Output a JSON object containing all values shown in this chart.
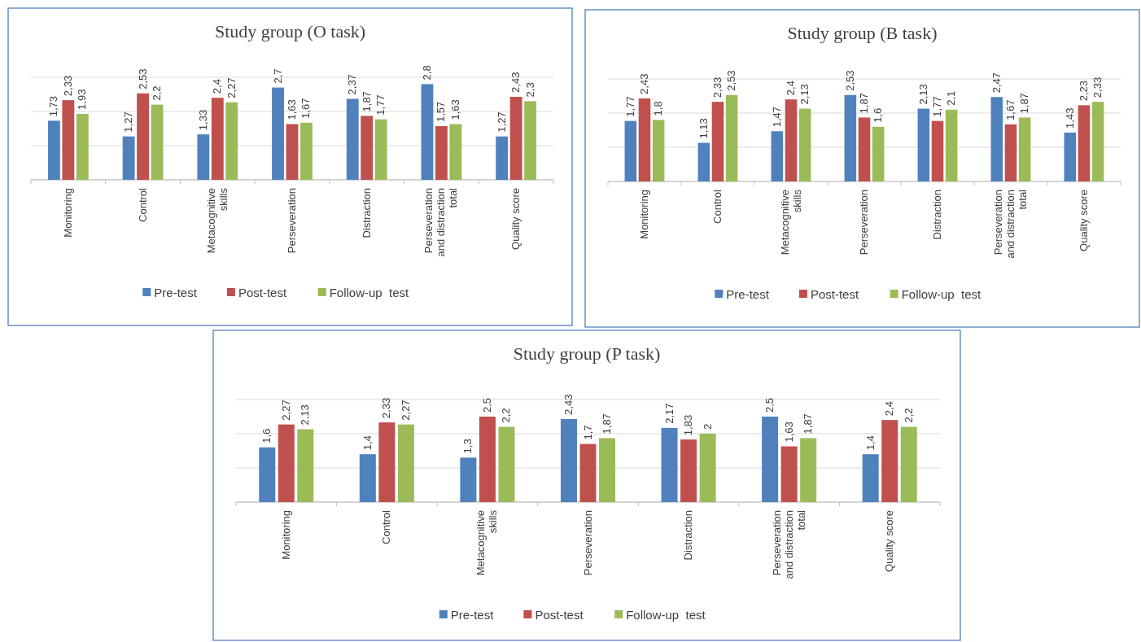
{
  "chart_data": [
    {
      "type": "bar",
      "title": "Study group (O task)",
      "categories": [
        "Monitoring",
        "Control",
        "Metacognitive skills",
        "Perseveration",
        "Distraction",
        "Perseveration and distraction total",
        "Quality score"
      ],
      "ylim": [
        0,
        3
      ],
      "yticks": [
        {
          "value": 0,
          "label": null
        },
        {
          "value": 1,
          "label": null
        },
        {
          "value": 2,
          "label": null
        },
        {
          "value": 3,
          "label": null
        }
      ],
      "tick_labels": "x",
      "grid": "y",
      "legend": "bottom",
      "series": [
        {
          "name": "Pre-test",
          "color": "#4f81bd",
          "values": [
            1.73,
            1.27,
            1.33,
            2.7,
            2.37,
            2.8,
            1.27
          ],
          "value_labels": [
            "1,73",
            "1,27",
            "1,33",
            "2,7",
            "2,37",
            "2,8",
            "1,27"
          ]
        },
        {
          "name": "Post-test",
          "color": "#c0504d",
          "values": [
            2.33,
            2.53,
            2.4,
            1.63,
            1.87,
            1.57,
            2.43
          ],
          "value_labels": [
            "2,33",
            "2,53",
            "2,4",
            "1,63",
            "1,87",
            "1,57",
            "2,43"
          ]
        },
        {
          "name": "Follow-up  test",
          "color": "#9bbb59",
          "values": [
            1.93,
            2.2,
            2.27,
            1.67,
            1.77,
            1.63,
            2.3
          ],
          "value_labels": [
            "1,93",
            "2,2",
            "2,27",
            "1,67",
            "1,77",
            "1,63",
            "2,3"
          ]
        }
      ]
    },
    {
      "type": "bar",
      "title": "Study group (B task)",
      "categories": [
        "Monitoring",
        "Control",
        "Metacognitive skills",
        "Perseveration",
        "Distraction",
        "Perseveration and distraction total",
        "Quality score"
      ],
      "ylim": [
        0,
        3
      ],
      "yticks": [
        {
          "value": 0,
          "label": null
        },
        {
          "value": 1,
          "label": null
        },
        {
          "value": 2,
          "label": null
        },
        {
          "value": 3,
          "label": null
        }
      ],
      "tick_labels": "x",
      "grid": "y",
      "legend": "bottom",
      "series": [
        {
          "name": "Pre-test",
          "color": "#4f81bd",
          "values": [
            1.77,
            1.13,
            1.47,
            2.53,
            2.13,
            2.47,
            1.43
          ],
          "value_labels": [
            "1,77",
            "1,13",
            "1,47",
            "2,53",
            "2,13",
            "2,47",
            "1,43"
          ]
        },
        {
          "name": "Post-test",
          "color": "#c0504d",
          "values": [
            2.43,
            2.33,
            2.4,
            1.87,
            1.77,
            1.67,
            2.23
          ],
          "value_labels": [
            "2,43",
            "2,33",
            "2,4",
            "1,87",
            "1,77",
            "1,67",
            "2,23"
          ]
        },
        {
          "name": "Follow-up  test",
          "color": "#9bbb59",
          "values": [
            1.8,
            2.53,
            2.13,
            1.6,
            2.1,
            1.87,
            2.33
          ],
          "value_labels": [
            "1,8",
            "2,53",
            "2,13",
            "1,6",
            "2,1",
            "1,87",
            "2,33"
          ]
        }
      ]
    },
    {
      "type": "bar",
      "title": "Study group (P task)",
      "categories": [
        "Monitoring",
        "Control",
        "Metacognitive skills",
        "Perseveration",
        "Distraction",
        "Perseveration and distraction total",
        "Quality score"
      ],
      "ylim": [
        0,
        3
      ],
      "yticks": [
        {
          "value": 0,
          "label": null
        },
        {
          "value": 1,
          "label": null
        },
        {
          "value": 2,
          "label": null
        },
        {
          "value": 3,
          "label": null
        }
      ],
      "tick_labels": "x",
      "grid": "y",
      "legend": "bottom",
      "series": [
        {
          "name": "Pre-test",
          "color": "#4f81bd",
          "values": [
            1.6,
            1.4,
            1.3,
            2.43,
            2.17,
            2.5,
            1.4
          ],
          "value_labels": [
            "1,6",
            "1,4",
            "1,3",
            "2,43",
            "2,17",
            "2,5",
            "1,4"
          ]
        },
        {
          "name": "Post-test",
          "color": "#c0504d",
          "values": [
            2.27,
            2.33,
            2.5,
            1.7,
            1.83,
            1.63,
            2.4
          ],
          "value_labels": [
            "2,27",
            "2,33",
            "2,5",
            "1,7",
            "1,83",
            "1,63",
            "2,4"
          ]
        },
        {
          "name": "Follow-up  test",
          "color": "#9bbb59",
          "values": [
            2.13,
            2.27,
            2.2,
            1.87,
            2,
            1.87,
            2.2
          ],
          "value_labels": [
            "2,13",
            "2,27",
            "2,2",
            "1,87",
            "2",
            "1,87",
            "2,2"
          ]
        }
      ]
    }
  ]
}
